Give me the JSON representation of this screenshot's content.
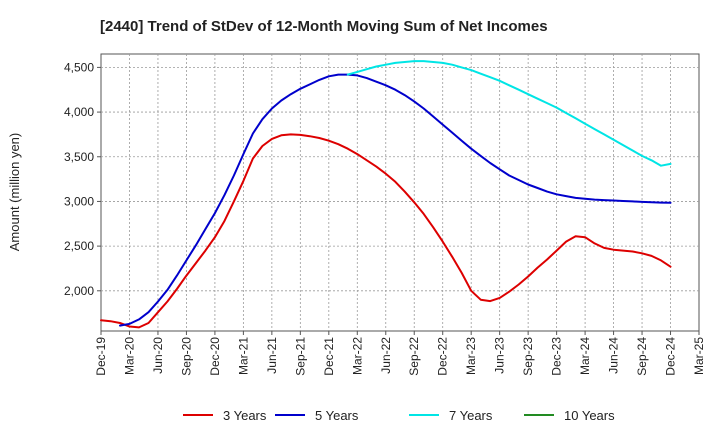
{
  "chart_data": {
    "type": "line",
    "title": "[2440]  Trend of StDev of 12-Month Moving Sum of Net Incomes",
    "ylabel": "Amount (million yen)",
    "xlabel": "",
    "ylim": [
      1550,
      4650
    ],
    "yticks": [
      2000,
      2500,
      3000,
      3500,
      4000,
      4500
    ],
    "ytick_labels": [
      "2,000",
      "2,500",
      "3,000",
      "3,500",
      "4,000",
      "4,500"
    ],
    "xticks": [
      "2019-12",
      "2020-03",
      "2020-06",
      "2020-09",
      "2020-12",
      "2021-03",
      "2021-06",
      "2021-09",
      "2021-12",
      "2022-03",
      "2022-06",
      "2022-09",
      "2022-12",
      "2023-03",
      "2023-06",
      "2023-09",
      "2023-12",
      "2024-03",
      "2024-06",
      "2024-09",
      "2024-12",
      "2025-03"
    ],
    "xtick_labels": [
      "Dec-19",
      "Mar-20",
      "Jun-20",
      "Sep-20",
      "Dec-20",
      "Mar-21",
      "Jun-21",
      "Sep-21",
      "Dec-21",
      "Mar-22",
      "Jun-22",
      "Sep-22",
      "Dec-22",
      "Mar-23",
      "Jun-23",
      "Sep-23",
      "Dec-23",
      "Mar-24",
      "Jun-24",
      "Sep-24",
      "Dec-24",
      "Mar-25"
    ],
    "grid": true,
    "legend_position": "bottom",
    "series": [
      {
        "name": "3 Years",
        "color": "#dd0000",
        "points": [
          [
            "2019-12",
            1670
          ],
          [
            "2020-01",
            1660
          ],
          [
            "2020-02",
            1640
          ],
          [
            "2020-03",
            1600
          ],
          [
            "2020-04",
            1590
          ],
          [
            "2020-05",
            1640
          ],
          [
            "2020-06",
            1760
          ],
          [
            "2020-07",
            1880
          ],
          [
            "2020-08",
            2020
          ],
          [
            "2020-09",
            2170
          ],
          [
            "2020-10",
            2310
          ],
          [
            "2020-11",
            2450
          ],
          [
            "2020-12",
            2600
          ],
          [
            "2021-01",
            2780
          ],
          [
            "2021-02",
            3000
          ],
          [
            "2021-03",
            3230
          ],
          [
            "2021-04",
            3480
          ],
          [
            "2021-05",
            3620
          ],
          [
            "2021-06",
            3700
          ],
          [
            "2021-07",
            3740
          ],
          [
            "2021-08",
            3750
          ],
          [
            "2021-09",
            3745
          ],
          [
            "2021-10",
            3730
          ],
          [
            "2021-11",
            3710
          ],
          [
            "2021-12",
            3680
          ],
          [
            "2022-01",
            3640
          ],
          [
            "2022-02",
            3590
          ],
          [
            "2022-03",
            3530
          ],
          [
            "2022-04",
            3460
          ],
          [
            "2022-05",
            3390
          ],
          [
            "2022-06",
            3310
          ],
          [
            "2022-07",
            3220
          ],
          [
            "2022-08",
            3110
          ],
          [
            "2022-09",
            2990
          ],
          [
            "2022-10",
            2860
          ],
          [
            "2022-11",
            2710
          ],
          [
            "2022-12",
            2550
          ],
          [
            "2023-01",
            2380
          ],
          [
            "2023-02",
            2200
          ],
          [
            "2023-03",
            2000
          ],
          [
            "2023-04",
            1900
          ],
          [
            "2023-05",
            1885
          ],
          [
            "2023-06",
            1920
          ],
          [
            "2023-07",
            1990
          ],
          [
            "2023-08",
            2070
          ],
          [
            "2023-09",
            2160
          ],
          [
            "2023-10",
            2260
          ],
          [
            "2023-11",
            2350
          ],
          [
            "2023-12",
            2450
          ],
          [
            "2024-01",
            2550
          ],
          [
            "2024-02",
            2610
          ],
          [
            "2024-03",
            2600
          ],
          [
            "2024-04",
            2530
          ],
          [
            "2024-05",
            2480
          ],
          [
            "2024-06",
            2460
          ],
          [
            "2024-07",
            2450
          ],
          [
            "2024-08",
            2440
          ],
          [
            "2024-09",
            2420
          ],
          [
            "2024-10",
            2390
          ],
          [
            "2024-11",
            2340
          ],
          [
            "2024-12",
            2270
          ]
        ]
      },
      {
        "name": "5 Years",
        "color": "#0000cc",
        "points": [
          [
            "2020-02",
            1610
          ],
          [
            "2020-03",
            1630
          ],
          [
            "2020-04",
            1680
          ],
          [
            "2020-05",
            1760
          ],
          [
            "2020-06",
            1880
          ],
          [
            "2020-07",
            2010
          ],
          [
            "2020-08",
            2170
          ],
          [
            "2020-09",
            2340
          ],
          [
            "2020-10",
            2510
          ],
          [
            "2020-11",
            2690
          ],
          [
            "2020-12",
            2870
          ],
          [
            "2021-01",
            3070
          ],
          [
            "2021-02",
            3290
          ],
          [
            "2021-03",
            3530
          ],
          [
            "2021-04",
            3760
          ],
          [
            "2021-05",
            3920
          ],
          [
            "2021-06",
            4040
          ],
          [
            "2021-07",
            4130
          ],
          [
            "2021-08",
            4200
          ],
          [
            "2021-09",
            4260
          ],
          [
            "2021-10",
            4310
          ],
          [
            "2021-11",
            4360
          ],
          [
            "2021-12",
            4400
          ],
          [
            "2022-01",
            4420
          ],
          [
            "2022-02",
            4420
          ],
          [
            "2022-03",
            4410
          ],
          [
            "2022-04",
            4380
          ],
          [
            "2022-05",
            4340
          ],
          [
            "2022-06",
            4300
          ],
          [
            "2022-07",
            4250
          ],
          [
            "2022-08",
            4190
          ],
          [
            "2022-09",
            4120
          ],
          [
            "2022-10",
            4040
          ],
          [
            "2022-11",
            3950
          ],
          [
            "2022-12",
            3860
          ],
          [
            "2023-01",
            3770
          ],
          [
            "2023-02",
            3680
          ],
          [
            "2023-03",
            3590
          ],
          [
            "2023-04",
            3510
          ],
          [
            "2023-05",
            3430
          ],
          [
            "2023-06",
            3360
          ],
          [
            "2023-07",
            3290
          ],
          [
            "2023-08",
            3240
          ],
          [
            "2023-09",
            3190
          ],
          [
            "2023-10",
            3150
          ],
          [
            "2023-11",
            3110
          ],
          [
            "2023-12",
            3080
          ],
          [
            "2024-01",
            3060
          ],
          [
            "2024-02",
            3040
          ],
          [
            "2024-03",
            3030
          ],
          [
            "2024-04",
            3020
          ],
          [
            "2024-05",
            3015
          ],
          [
            "2024-06",
            3010
          ],
          [
            "2024-07",
            3005
          ],
          [
            "2024-08",
            3000
          ],
          [
            "2024-09",
            2995
          ],
          [
            "2024-10",
            2990
          ],
          [
            "2024-11",
            2987
          ],
          [
            "2024-12",
            2985
          ]
        ]
      },
      {
        "name": "7 Years",
        "color": "#00e5e5",
        "points": [
          [
            "2022-02",
            4420
          ],
          [
            "2022-03",
            4450
          ],
          [
            "2022-04",
            4480
          ],
          [
            "2022-05",
            4510
          ],
          [
            "2022-06",
            4530
          ],
          [
            "2022-07",
            4550
          ],
          [
            "2022-08",
            4560
          ],
          [
            "2022-09",
            4570
          ],
          [
            "2022-10",
            4570
          ],
          [
            "2022-11",
            4560
          ],
          [
            "2022-12",
            4550
          ],
          [
            "2023-01",
            4530
          ],
          [
            "2023-02",
            4500
          ],
          [
            "2023-03",
            4470
          ],
          [
            "2023-04",
            4430
          ],
          [
            "2023-05",
            4390
          ],
          [
            "2023-06",
            4350
          ],
          [
            "2023-07",
            4300
          ],
          [
            "2023-08",
            4250
          ],
          [
            "2023-09",
            4200
          ],
          [
            "2023-10",
            4150
          ],
          [
            "2023-11",
            4100
          ],
          [
            "2023-12",
            4050
          ],
          [
            "2024-01",
            3990
          ],
          [
            "2024-02",
            3930
          ],
          [
            "2024-03",
            3870
          ],
          [
            "2024-04",
            3810
          ],
          [
            "2024-05",
            3750
          ],
          [
            "2024-06",
            3690
          ],
          [
            "2024-07",
            3630
          ],
          [
            "2024-08",
            3570
          ],
          [
            "2024-09",
            3510
          ],
          [
            "2024-10",
            3460
          ],
          [
            "2024-11",
            3400
          ],
          [
            "2024-12",
            3420
          ]
        ]
      },
      {
        "name": "10 Years",
        "color": "#228b22",
        "points": []
      }
    ]
  }
}
